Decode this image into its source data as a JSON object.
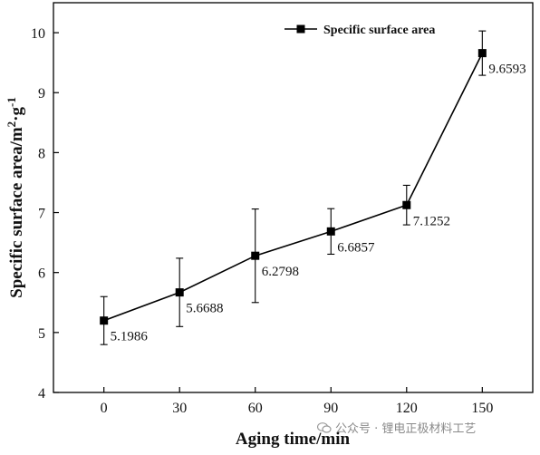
{
  "chart_data": {
    "type": "line",
    "xlabel": "Aging time/min",
    "ylabel_main": "Specific surface area/m",
    "ylabel_sup1": "2",
    "ylabel_mid": "·g",
    "ylabel_sup2": "-1",
    "xlim": [
      -20,
      170
    ],
    "ylim": [
      4,
      10.5
    ],
    "xticks": [
      0,
      30,
      60,
      90,
      120,
      150
    ],
    "yticks": [
      4,
      5,
      6,
      7,
      8,
      9,
      10
    ],
    "grid": false,
    "legend_position": "top-right",
    "series": [
      {
        "name": "Specific surface area",
        "x": [
          0,
          30,
          60,
          90,
          120,
          150
        ],
        "y": [
          5.1986,
          5.6688,
          6.2798,
          6.6857,
          7.1252,
          9.6593
        ],
        "error": [
          0.4,
          0.57,
          0.78,
          0.38,
          0.33,
          0.37
        ],
        "labels": [
          "5.1986",
          "5.6688",
          "6.2798",
          "6.6857",
          "7.1252",
          "9.6593"
        ],
        "color": "#000000",
        "marker": "square"
      }
    ]
  },
  "watermark": {
    "text": "公众号 · 锂电正极材料工艺",
    "icon": "wechat-icon"
  }
}
